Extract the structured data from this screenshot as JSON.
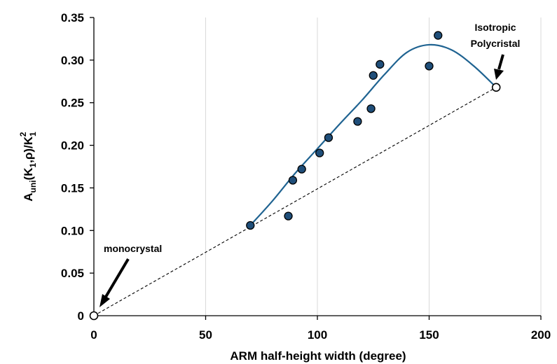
{
  "chart_data": {
    "type": "scatter",
    "xlabel": "ARM half-height width (degree)",
    "ylabel": {
      "base1": "A",
      "sub1": "uni",
      "base2": "(K",
      "sub2": "1",
      "base3": ",ρ)/K",
      "sub3": "1",
      "sup3": "2"
    },
    "xlim": [
      0,
      200
    ],
    "ylim": [
      0,
      0.35
    ],
    "x_ticks": [
      "0",
      "50",
      "100",
      "150",
      "200"
    ],
    "y_ticks": [
      "0",
      "0.05",
      "0.10",
      "0.15",
      "0.20",
      "0.25",
      "0.30",
      "0.35"
    ],
    "grid": "vertical",
    "series": [
      {
        "role": "measured points",
        "marker": "filled-circle",
        "color": "#1f4e79",
        "x": [
          70,
          87,
          89,
          93,
          101,
          105,
          118,
          124,
          125,
          128,
          150,
          154
        ],
        "y": [
          0.106,
          0.117,
          0.159,
          0.172,
          0.191,
          0.209,
          0.228,
          0.243,
          0.282,
          0.295,
          0.293,
          0.329
        ]
      },
      {
        "role": "fit curve",
        "style": "solid",
        "color": "#1f6391",
        "x": [
          70,
          80,
          90,
          100,
          110,
          120,
          130,
          140,
          150,
          160,
          170,
          180
        ],
        "y": [
          0.106,
          0.135,
          0.167,
          0.196,
          0.225,
          0.253,
          0.283,
          0.309,
          0.318,
          0.312,
          0.293,
          0.268
        ]
      },
      {
        "role": "reference line",
        "style": "dashed",
        "color": "#000000",
        "x": [
          0,
          180
        ],
        "y": [
          0,
          0.268
        ]
      },
      {
        "role": "endpoints",
        "marker": "open-circle",
        "color": "#000000",
        "x": [
          0,
          180
        ],
        "y": [
          0,
          0.268
        ]
      }
    ],
    "annotations": [
      {
        "lines": [
          "monocrystal"
        ]
      },
      {
        "lines": [
          "Isotropic",
          "Polycristal"
        ]
      }
    ]
  }
}
